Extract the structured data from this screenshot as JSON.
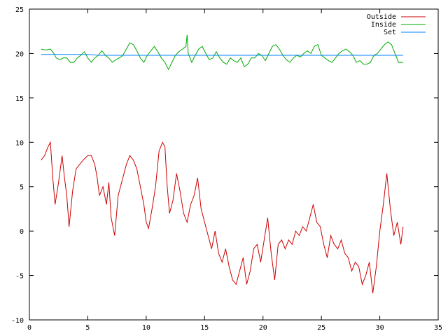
{
  "chart_data": {
    "type": "line",
    "xlim": [
      0,
      35
    ],
    "ylim": [
      -10,
      25
    ],
    "x_ticks": [
      0,
      5,
      10,
      15,
      20,
      25,
      30,
      35
    ],
    "y_ticks": [
      -10,
      -5,
      0,
      5,
      10,
      15,
      20,
      25
    ],
    "grid": false,
    "legend_position": "top-right",
    "series": [
      {
        "name": "Outside",
        "color": "#cc0000",
        "x": [
          1.0,
          1.3,
          1.6,
          1.8,
          2.0,
          2.2,
          2.5,
          2.8,
          3.0,
          3.2,
          3.4,
          3.7,
          4.0,
          4.3,
          4.6,
          5.0,
          5.3,
          5.6,
          5.8,
          6.0,
          6.3,
          6.6,
          6.8,
          7.0,
          7.3,
          7.6,
          8.0,
          8.3,
          8.6,
          8.9,
          9.2,
          9.5,
          9.8,
          10.0,
          10.2,
          10.5,
          10.8,
          11.1,
          11.4,
          11.6,
          11.8,
          12.0,
          12.3,
          12.6,
          12.9,
          13.2,
          13.5,
          13.8,
          14.1,
          14.4,
          14.7,
          15.0,
          15.3,
          15.6,
          15.9,
          16.2,
          16.5,
          16.8,
          17.1,
          17.4,
          17.7,
          18.0,
          18.3,
          18.6,
          18.9,
          19.2,
          19.5,
          19.8,
          20.1,
          20.4,
          20.7,
          21.0,
          21.3,
          21.6,
          21.9,
          22.2,
          22.5,
          22.8,
          23.1,
          23.4,
          23.7,
          24.0,
          24.3,
          24.6,
          24.9,
          25.2,
          25.5,
          25.8,
          26.1,
          26.4,
          26.7,
          27.0,
          27.3,
          27.6,
          27.9,
          28.2,
          28.5,
          28.8,
          29.1,
          29.4,
          29.7,
          30.0,
          30.3,
          30.6,
          30.9,
          31.2,
          31.5,
          31.8,
          32.0
        ],
        "y": [
          8.0,
          8.5,
          9.5,
          10.0,
          6.0,
          3.0,
          5.5,
          8.5,
          6.0,
          4.0,
          0.5,
          4.5,
          7.0,
          7.5,
          8.0,
          8.5,
          8.5,
          7.5,
          6.0,
          4.0,
          5.0,
          3.0,
          5.5,
          1.5,
          -0.5,
          4.0,
          6.0,
          7.5,
          8.5,
          8.0,
          7.0,
          5.0,
          3.0,
          1.0,
          0.3,
          2.5,
          5.0,
          9.0,
          10.0,
          9.5,
          5.0,
          2.0,
          3.5,
          6.5,
          4.5,
          2.0,
          1.0,
          3.0,
          4.0,
          6.0,
          2.5,
          1.0,
          -0.5,
          -2.0,
          0.0,
          -2.5,
          -3.5,
          -2.0,
          -4.0,
          -5.5,
          -6.0,
          -4.5,
          -3.0,
          -6.0,
          -4.5,
          -2.0,
          -1.5,
          -3.5,
          -1.0,
          1.5,
          -2.5,
          -5.5,
          -1.5,
          -1.0,
          -2.0,
          -1.0,
          -1.5,
          0.0,
          -0.5,
          0.5,
          0.0,
          1.5,
          3.0,
          1.0,
          0.5,
          -1.5,
          -3.0,
          -0.5,
          -1.5,
          -2.0,
          -1.0,
          -2.5,
          -3.0,
          -4.5,
          -3.5,
          -4.0,
          -6.0,
          -5.0,
          -3.5,
          -7.0,
          -4.0,
          0.0,
          3.0,
          6.5,
          2.5,
          -0.5,
          1.0,
          -1.5,
          0.5
        ]
      },
      {
        "name": "Inside",
        "color": "#00aa00",
        "x": [
          1.0,
          1.4,
          1.8,
          2.1,
          2.3,
          2.6,
          2.9,
          3.2,
          3.5,
          3.8,
          4.1,
          4.4,
          4.7,
          5.0,
          5.3,
          5.6,
          5.9,
          6.2,
          6.5,
          6.8,
          7.1,
          7.4,
          7.7,
          8.0,
          8.3,
          8.6,
          8.9,
          9.2,
          9.5,
          9.8,
          10.1,
          10.4,
          10.7,
          11.0,
          11.3,
          11.6,
          11.9,
          12.2,
          12.5,
          12.8,
          13.1,
          13.4,
          13.5,
          13.6,
          13.9,
          14.2,
          14.5,
          14.8,
          15.1,
          15.4,
          15.7,
          16.0,
          16.3,
          16.6,
          16.9,
          17.2,
          17.5,
          17.8,
          18.1,
          18.4,
          18.7,
          19.0,
          19.3,
          19.6,
          19.9,
          20.2,
          20.5,
          20.8,
          21.1,
          21.4,
          21.7,
          22.0,
          22.3,
          22.6,
          22.9,
          23.2,
          23.5,
          23.8,
          24.1,
          24.4,
          24.7,
          25.0,
          25.3,
          25.6,
          25.9,
          26.2,
          26.5,
          26.8,
          27.1,
          27.4,
          27.7,
          28.0,
          28.3,
          28.6,
          28.9,
          29.2,
          29.5,
          29.8,
          30.1,
          30.4,
          30.7,
          31.0,
          31.3,
          31.6,
          31.9,
          32.0
        ],
        "y": [
          20.5,
          20.4,
          20.5,
          20.0,
          19.5,
          19.3,
          19.5,
          19.5,
          19.0,
          19.0,
          19.5,
          19.8,
          20.2,
          19.5,
          19.0,
          19.5,
          19.8,
          20.3,
          19.8,
          19.5,
          19.0,
          19.3,
          19.5,
          19.8,
          20.5,
          21.2,
          21.0,
          20.3,
          19.5,
          19.0,
          19.8,
          20.3,
          20.8,
          20.2,
          19.5,
          19.0,
          18.2,
          19.0,
          19.8,
          20.2,
          20.5,
          20.8,
          22.1,
          20.0,
          19.0,
          19.8,
          20.5,
          20.8,
          20.0,
          19.3,
          19.5,
          20.2,
          19.5,
          19.0,
          18.8,
          19.5,
          19.2,
          19.0,
          19.5,
          18.5,
          18.8,
          19.5,
          19.5,
          20.0,
          19.8,
          19.2,
          20.0,
          20.8,
          21.0,
          20.5,
          19.8,
          19.3,
          19.0,
          19.5,
          19.8,
          19.6,
          20.0,
          20.3,
          20.0,
          20.8,
          21.0,
          19.8,
          19.5,
          19.2,
          19.0,
          19.5,
          20.0,
          20.3,
          20.5,
          20.2,
          19.8,
          19.0,
          19.2,
          18.8,
          18.8,
          19.0,
          19.8,
          20.0,
          20.5,
          21.0,
          21.3,
          21.0,
          20.0,
          19.0,
          19.0,
          19.0
        ]
      },
      {
        "name": "Set",
        "color": "#0080ff",
        "x": [
          1.0,
          2.0,
          3.0,
          4.0,
          5.0,
          6.0,
          7.0,
          8.0,
          9.0,
          10.0,
          11.0,
          12.0,
          13.0,
          14.0,
          15.0,
          16.0,
          17.0,
          18.0,
          19.0,
          20.0,
          21.0,
          22.0,
          23.0,
          24.0,
          25.0,
          26.0,
          27.0,
          28.0,
          29.0,
          30.0,
          31.0,
          32.0
        ],
        "y": [
          19.9,
          19.9,
          19.9,
          19.9,
          19.9,
          19.8,
          19.8,
          19.8,
          19.8,
          19.8,
          19.8,
          19.8,
          19.8,
          19.8,
          19.8,
          19.8,
          19.8,
          19.8,
          19.8,
          19.8,
          19.8,
          19.8,
          19.8,
          19.8,
          19.8,
          19.8,
          19.8,
          19.8,
          19.8,
          19.8,
          19.8,
          19.8
        ]
      }
    ]
  }
}
